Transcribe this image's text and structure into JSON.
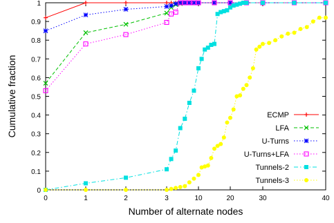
{
  "chart_data": {
    "type": "line",
    "xlabel": "Number of alternate nodes",
    "ylabel": "Cumulative fraction",
    "xaxis_scale": "piecewise (0–3 linear, 3–40 compressed)",
    "xticks": [
      0,
      1,
      2,
      3,
      10,
      20,
      30,
      40
    ],
    "yticks": [
      0,
      0.1,
      0.2,
      0.3,
      0.4,
      0.5,
      0.6,
      0.7,
      0.8,
      0.9,
      1
    ],
    "ylim": [
      0,
      1
    ],
    "grid": false,
    "legend_position": "bottom-right",
    "series": [
      {
        "name": "ECMP",
        "color": "#ff0000",
        "dash": "solid",
        "marker": "plus",
        "x": [
          0,
          1,
          2,
          3,
          4,
          5,
          6,
          7,
          8,
          9,
          10,
          15,
          20,
          25,
          30,
          35,
          40
        ],
        "y": [
          0.92,
          1.0,
          1.0,
          1.0,
          1.0,
          1.0,
          1.0,
          1.0,
          1.0,
          1.0,
          1.0,
          1.0,
          1.0,
          1.0,
          1.0,
          1.0,
          1.0
        ]
      },
      {
        "name": "LFA",
        "color": "#00c000",
        "dash": "dashed",
        "marker": "x",
        "x": [
          0,
          1,
          2,
          3,
          4,
          5,
          6,
          7,
          8,
          9,
          10,
          15,
          20,
          25,
          30,
          35,
          40
        ],
        "y": [
          0.57,
          0.84,
          0.885,
          0.945,
          0.975,
          0.99,
          0.995,
          1.0,
          1.0,
          1.0,
          1.0,
          1.0,
          1.0,
          1.0,
          1.0,
          1.0,
          1.0
        ]
      },
      {
        "name": "U-Turns",
        "color": "#0000ff",
        "dash": "dotted",
        "marker": "star",
        "x": [
          0,
          1,
          2,
          3,
          4,
          5,
          6,
          7,
          8,
          9,
          10,
          15,
          20,
          25,
          30,
          35,
          40
        ],
        "y": [
          0.85,
          0.935,
          0.965,
          0.98,
          0.985,
          0.995,
          1.0,
          1.0,
          1.0,
          1.0,
          1.0,
          1.0,
          1.0,
          1.0,
          1.0,
          1.0,
          1.0
        ]
      },
      {
        "name": "U-Turns+LFA",
        "color": "#ff00ff",
        "dash": "dotted",
        "marker": "square",
        "x": [
          0,
          1,
          2,
          3,
          4,
          5,
          6,
          7,
          8,
          9,
          10,
          15,
          20,
          25,
          30,
          35,
          40
        ],
        "y": [
          0.53,
          0.78,
          0.83,
          0.895,
          0.94,
          0.95,
          1.0,
          1.0,
          1.0,
          1.0,
          1.0,
          1.0,
          1.0,
          1.0,
          1.0,
          1.0,
          1.0
        ]
      },
      {
        "name": "Tunnels-2",
        "color": "#00e0e0",
        "dash": "dashdot",
        "marker": "filled-square",
        "x": [
          0,
          1,
          2,
          3,
          4,
          5,
          6,
          7,
          8,
          9,
          10,
          11,
          12,
          13,
          14,
          15,
          16,
          17,
          18,
          19,
          20,
          21,
          22,
          23,
          24,
          25,
          30,
          35,
          40
        ],
        "y": [
          0.0,
          0.035,
          0.065,
          0.11,
          0.165,
          0.21,
          0.33,
          0.38,
          0.465,
          0.53,
          0.65,
          0.7,
          0.75,
          0.76,
          0.775,
          0.78,
          0.94,
          0.95,
          0.955,
          0.96,
          0.975,
          0.985,
          0.99,
          0.995,
          1.0,
          1.0,
          1.0,
          1.0,
          1.0
        ]
      },
      {
        "name": "Tunnels-3",
        "color": "#ffff00",
        "dash": "dotted",
        "marker": "filled-circle",
        "x": [
          0,
          1,
          2,
          3,
          4,
          5,
          6,
          7,
          8,
          9,
          10,
          11,
          12,
          13,
          14,
          15,
          16,
          17,
          18,
          19,
          20,
          21,
          22,
          23,
          24,
          25,
          26,
          27,
          28,
          29,
          30,
          31,
          32,
          33,
          34,
          35,
          36,
          37,
          38,
          39,
          40
        ],
        "y": [
          0.0,
          0.0,
          0.0,
          0.0,
          0.005,
          0.01,
          0.015,
          0.02,
          0.04,
          0.06,
          0.08,
          0.12,
          0.125,
          0.13,
          0.17,
          0.22,
          0.235,
          0.245,
          0.28,
          0.36,
          0.385,
          0.43,
          0.5,
          0.505,
          0.54,
          0.56,
          0.6,
          0.65,
          0.75,
          0.765,
          0.78,
          0.785,
          0.8,
          0.82,
          0.835,
          0.84,
          0.86,
          0.87,
          0.9,
          0.92,
          0.92
        ]
      }
    ]
  }
}
